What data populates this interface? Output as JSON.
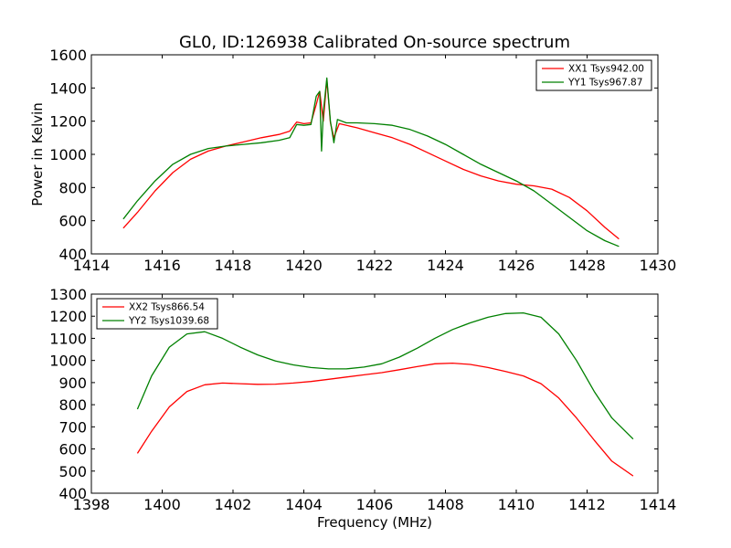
{
  "chart_data": [
    {
      "type": "line",
      "title": "GL0, ID:126938 Calibrated On-source spectrum",
      "xlabel": "",
      "ylabel": "Power in Kelvin",
      "xlim": [
        1414,
        1430
      ],
      "ylim": [
        400,
        1600
      ],
      "xticks": [
        1414,
        1416,
        1418,
        1420,
        1422,
        1424,
        1426,
        1428,
        1430
      ],
      "yticks": [
        400,
        600,
        800,
        1000,
        1200,
        1400,
        1600
      ],
      "legend_position": "top-right",
      "series": [
        {
          "name": "XX1 Tsys942.00",
          "color": "#ff0000",
          "x": [
            1414.9,
            1415.3,
            1415.8,
            1416.3,
            1416.8,
            1417.3,
            1417.8,
            1418.3,
            1418.8,
            1419.3,
            1419.6,
            1419.8,
            1420.0,
            1420.2,
            1420.35,
            1420.45,
            1420.55,
            1420.65,
            1420.75,
            1420.85,
            1421.0,
            1421.5,
            1422.0,
            1422.5,
            1423.0,
            1423.5,
            1424.0,
            1424.5,
            1425.0,
            1425.5,
            1426.0,
            1426.5,
            1427.0,
            1427.5,
            1428.0,
            1428.5,
            1428.9
          ],
          "y": [
            555,
            650,
            780,
            890,
            970,
            1020,
            1050,
            1075,
            1100,
            1120,
            1140,
            1195,
            1185,
            1190,
            1300,
            1380,
            1200,
            1450,
            1190,
            1100,
            1185,
            1160,
            1130,
            1100,
            1060,
            1010,
            960,
            910,
            870,
            840,
            820,
            810,
            790,
            740,
            660,
            560,
            490
          ]
        },
        {
          "name": "YY1 Tsys967.87",
          "color": "#008000",
          "x": [
            1414.9,
            1415.3,
            1415.8,
            1416.3,
            1416.8,
            1417.3,
            1417.8,
            1418.3,
            1418.8,
            1419.3,
            1419.6,
            1419.8,
            1420.0,
            1420.2,
            1420.35,
            1420.45,
            1420.5,
            1420.55,
            1420.65,
            1420.75,
            1420.85,
            1420.95,
            1421.2,
            1421.5,
            1422.0,
            1422.5,
            1423.0,
            1423.5,
            1424.0,
            1424.5,
            1425.0,
            1425.5,
            1426.0,
            1426.5,
            1427.0,
            1427.5,
            1428.0,
            1428.5,
            1428.9
          ],
          "y": [
            610,
            720,
            840,
            940,
            1000,
            1035,
            1050,
            1060,
            1070,
            1085,
            1100,
            1180,
            1175,
            1180,
            1350,
            1380,
            1020,
            1250,
            1460,
            1200,
            1070,
            1210,
            1190,
            1190,
            1185,
            1175,
            1150,
            1110,
            1060,
            1000,
            940,
            890,
            840,
            780,
            700,
            620,
            540,
            480,
            445
          ]
        }
      ]
    },
    {
      "type": "line",
      "title": "",
      "xlabel": "Frequency (MHz)",
      "ylabel": "",
      "xlim": [
        1398,
        1414
      ],
      "ylim": [
        400,
        1300
      ],
      "xticks": [
        1398,
        1400,
        1402,
        1404,
        1406,
        1408,
        1410,
        1412,
        1414
      ],
      "yticks": [
        400,
        500,
        600,
        700,
        800,
        900,
        1000,
        1100,
        1200,
        1300
      ],
      "legend_position": "top-left",
      "series": [
        {
          "name": "XX2 Tsys866.54",
          "color": "#ff0000",
          "x": [
            1399.3,
            1399.7,
            1400.2,
            1400.7,
            1401.2,
            1401.7,
            1402.2,
            1402.7,
            1403.2,
            1403.7,
            1404.2,
            1404.7,
            1405.2,
            1405.7,
            1406.2,
            1406.7,
            1407.2,
            1407.7,
            1408.2,
            1408.7,
            1409.2,
            1409.7,
            1410.2,
            1410.7,
            1411.2,
            1411.7,
            1412.2,
            1412.7,
            1413.3
          ],
          "y": [
            580,
            680,
            790,
            860,
            890,
            898,
            895,
            892,
            893,
            898,
            905,
            915,
            925,
            935,
            945,
            958,
            972,
            985,
            988,
            982,
            968,
            950,
            930,
            895,
            830,
            740,
            640,
            545,
            478
          ]
        },
        {
          "name": "YY2 Tsys1039.68",
          "color": "#008000",
          "x": [
            1399.3,
            1399.7,
            1400.2,
            1400.7,
            1401.2,
            1401.7,
            1402.2,
            1402.7,
            1403.2,
            1403.7,
            1404.2,
            1404.7,
            1405.2,
            1405.7,
            1406.2,
            1406.7,
            1407.2,
            1407.7,
            1408.2,
            1408.7,
            1409.2,
            1409.7,
            1410.2,
            1410.7,
            1411.2,
            1411.7,
            1412.2,
            1412.7,
            1413.3
          ],
          "y": [
            780,
            930,
            1060,
            1120,
            1130,
            1100,
            1060,
            1025,
            998,
            980,
            968,
            962,
            962,
            970,
            985,
            1015,
            1055,
            1100,
            1140,
            1170,
            1195,
            1212,
            1215,
            1195,
            1120,
            1000,
            860,
            740,
            645
          ]
        }
      ]
    }
  ]
}
